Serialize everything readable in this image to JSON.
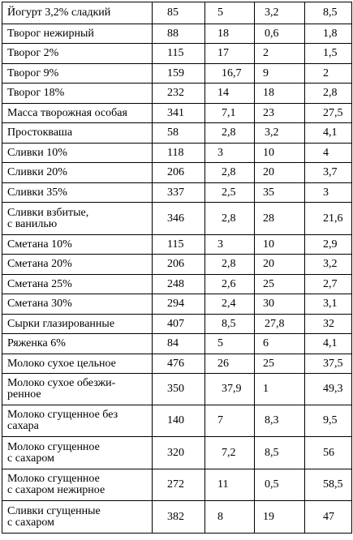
{
  "rows": [
    {
      "name": "Йогурт 3,2% сладкий",
      "v1": "85",
      "v2": "5",
      "v3": "3,2",
      "v4": "8,5"
    },
    {
      "name": "Творог нежирный",
      "v1": "88",
      "v2": "18",
      "v3": "0,6",
      "v4": "1,8"
    },
    {
      "name": "Творог 2%",
      "v1": "115",
      "v2": "17",
      "v3": "2",
      "v4": "1,5"
    },
    {
      "name": "Творог 9%",
      "v1": "159",
      "v2": "16,7",
      "v3": "9",
      "v4": "2"
    },
    {
      "name": "Творог 18%",
      "v1": "232",
      "v2": "14",
      "v3": "18",
      "v4": "2,8"
    },
    {
      "name": "Масса творожная особая",
      "v1": "341",
      "v2": "7,1",
      "v3": "23",
      "v4": "27,5"
    },
    {
      "name": "Простокваша",
      "v1": "58",
      "v2": "2,8",
      "v3": "3,2",
      "v4": "4,1"
    },
    {
      "name": "Сливки 10%",
      "v1": "118",
      "v2": "3",
      "v3": "10",
      "v4": "4"
    },
    {
      "name": "Сливки 20%",
      "v1": "206",
      "v2": "2,8",
      "v3": "20",
      "v4": "3,7"
    },
    {
      "name": "Сливки 35%",
      "v1": "337",
      "v2": "2,5",
      "v3": "35",
      "v4": "3"
    },
    {
      "name": "Сливки взбитые,\nс ванилью",
      "v1": "346",
      "v2": "2,8",
      "v3": "28",
      "v4": "21,6"
    },
    {
      "name": "Сметана 10%",
      "v1": "115",
      "v2": "3",
      "v3": "10",
      "v4": "2,9"
    },
    {
      "name": "Сметана 20%",
      "v1": "206",
      "v2": "2,8",
      "v3": "20",
      "v4": "3,2"
    },
    {
      "name": "Сметана 25%",
      "v1": "248",
      "v2": "2,6",
      "v3": "25",
      "v4": "2,7"
    },
    {
      "name": "Сметана 30%",
      "v1": "294",
      "v2": "2,4",
      "v3": "30",
      "v4": "3,1"
    },
    {
      "name": "Сырки глазированные",
      "v1": "407",
      "v2": "8,5",
      "v3": "27,8",
      "v4": "32"
    },
    {
      "name": "Ряженка 6%",
      "v1": "84",
      "v2": "5",
      "v3": "6",
      "v4": "4,1"
    },
    {
      "name": "Молоко сухое цельное",
      "v1": "476",
      "v2": "26",
      "v3": "25",
      "v4": "37,5"
    },
    {
      "name": "Молоко сухое обезжи-\nренное",
      "v1": "350",
      "v2": "37,9",
      "v3": "1",
      "v4": "49,3"
    },
    {
      "name": "Молоко сгущенное без\nсахара",
      "v1": "140",
      "v2": "7",
      "v3": "8,3",
      "v4": "9,5"
    },
    {
      "name": "Молоко сгущенное\nс сахаром",
      "v1": "320",
      "v2": "7,2",
      "v3": "8,5",
      "v4": "56"
    },
    {
      "name": "Молоко сгущенное\nс сахаром нежирное",
      "v1": "272",
      "v2": "11",
      "v3": "0,5",
      "v4": "58,5"
    },
    {
      "name": "Сливки сгущенные\nс сахаром",
      "v1": "382",
      "v2": "8",
      "v3": "19",
      "v4": "47"
    }
  ]
}
